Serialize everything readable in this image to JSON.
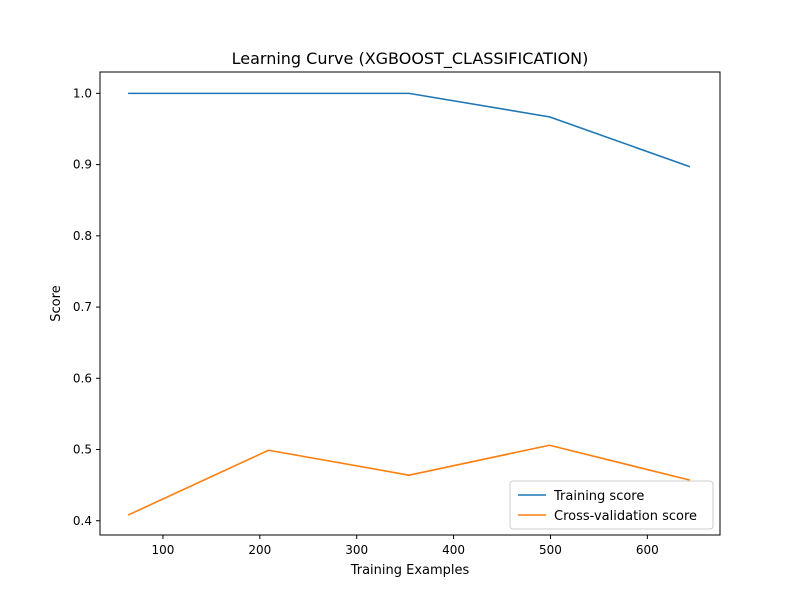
{
  "chart_data": {
    "type": "line",
    "title": "Learning Curve (XGBOOST_CLASSIFICATION)",
    "xlabel": "Training Examples",
    "ylabel": "Score",
    "xlim": [
      35,
      675
    ],
    "ylim": [
      0.38,
      1.03
    ],
    "x_ticks": [
      100,
      200,
      300,
      400,
      500,
      600
    ],
    "y_ticks": [
      0.4,
      0.5,
      0.6,
      0.7,
      0.8,
      0.9,
      1.0
    ],
    "x": [
      64,
      209,
      354,
      499,
      644
    ],
    "grid": false,
    "legend_position": "lower-right",
    "series": [
      {
        "name": "Training score",
        "color": "#1f77b4",
        "values": [
          1.0,
          1.0,
          1.0,
          0.967,
          0.897
        ]
      },
      {
        "name": "Cross-validation score",
        "color": "#ff7f0e",
        "values": [
          0.408,
          0.499,
          0.464,
          0.506,
          0.457
        ]
      }
    ]
  }
}
